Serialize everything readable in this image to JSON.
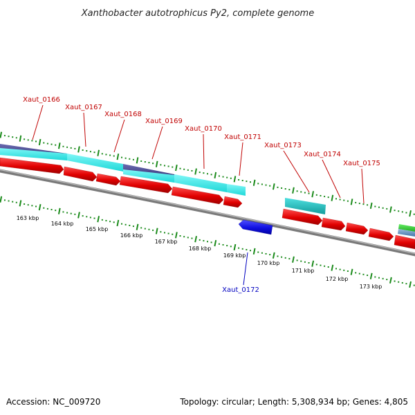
{
  "title": "Xanthobacter autotrophicus Py2, complete genome",
  "footer": {
    "accession": "Accession: NC_009720",
    "topology": "Topology: circular; Length: 5,308,934 bp; Genes: 4,805"
  },
  "colors": {
    "forward_gene": "#e00000",
    "reverse_gene": "#1010e0",
    "forward_label": "#c00000",
    "reverse_label": "#0000c0",
    "tick": "#1a8a1a",
    "backbone": "#888888",
    "cyan_track": "#22e6e6",
    "dark_track": "#3e3e88",
    "teal_track": "#20c4c4",
    "green_track": "#33cc33",
    "steel_track": "#6699cc"
  },
  "scale_labels": [
    "163 kbp",
    "164 kbp",
    "165 kbp",
    "166 kbp",
    "167 kbp",
    "168 kbp",
    "169 kbp",
    "170 kbp",
    "171 kbp",
    "172 kbp",
    "173 kbp"
  ],
  "genes": [
    {
      "name": "Xaut_0166",
      "strand": "+"
    },
    {
      "name": "Xaut_0167",
      "strand": "+"
    },
    {
      "name": "Xaut_0168",
      "strand": "+"
    },
    {
      "name": "Xaut_0169",
      "strand": "+"
    },
    {
      "name": "Xaut_0170",
      "strand": "+"
    },
    {
      "name": "Xaut_0171",
      "strand": "+"
    },
    {
      "name": "Xaut_0172",
      "strand": "-"
    },
    {
      "name": "Xaut_0173",
      "strand": "+"
    },
    {
      "name": "Xaut_0174",
      "strand": "+"
    },
    {
      "name": "Xaut_0175",
      "strand": "+"
    }
  ]
}
